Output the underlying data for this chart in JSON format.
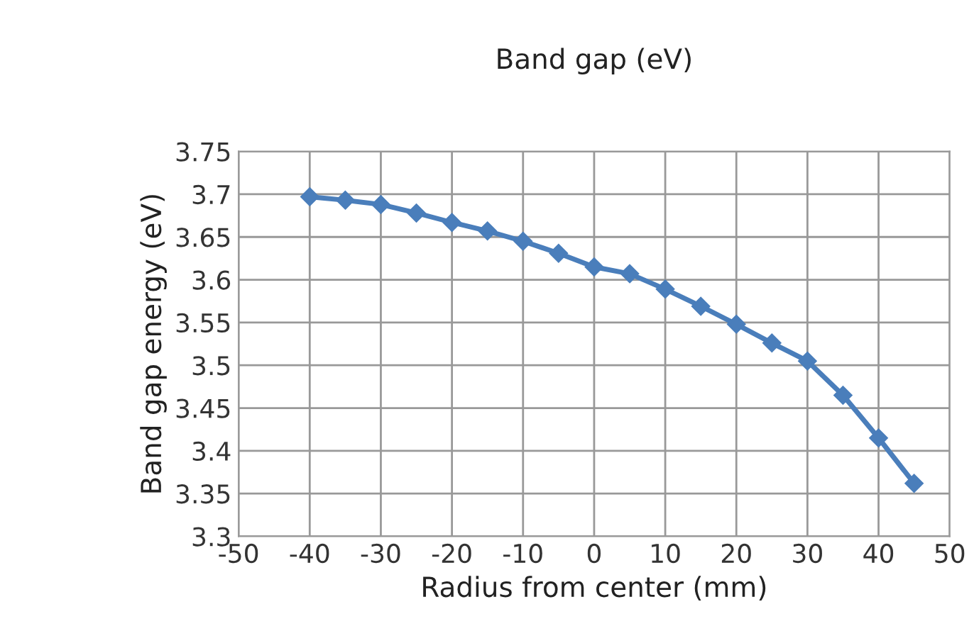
{
  "chart_data": {
    "type": "line",
    "title": "Band gap (eV)",
    "xlabel": "Radius from center (mm)",
    "ylabel": "Band gap energy (eV)",
    "x": [
      -40,
      -35,
      -30,
      -25,
      -20,
      -15,
      -10,
      -5,
      0,
      5,
      10,
      15,
      20,
      25,
      30,
      35,
      40,
      45
    ],
    "series": [
      {
        "color": "#4a7ebb",
        "values": [
          3.697,
          3.693,
          3.688,
          3.678,
          3.667,
          3.657,
          3.645,
          3.631,
          3.615,
          3.607,
          3.589,
          3.569,
          3.548,
          3.526,
          3.505,
          3.465,
          3.415,
          3.362
        ]
      }
    ],
    "xlim": [
      -50,
      50
    ],
    "xticks": [
      -50,
      -40,
      -30,
      -20,
      -10,
      0,
      10,
      20,
      30,
      40,
      50
    ],
    "ylim": [
      3.3,
      3.75
    ],
    "yticks": [
      3.3,
      3.35,
      3.4,
      3.45,
      3.5,
      3.55,
      3.6,
      3.65,
      3.7,
      3.75
    ],
    "grid": true,
    "marker": "diamond",
    "line_style": "solid"
  }
}
